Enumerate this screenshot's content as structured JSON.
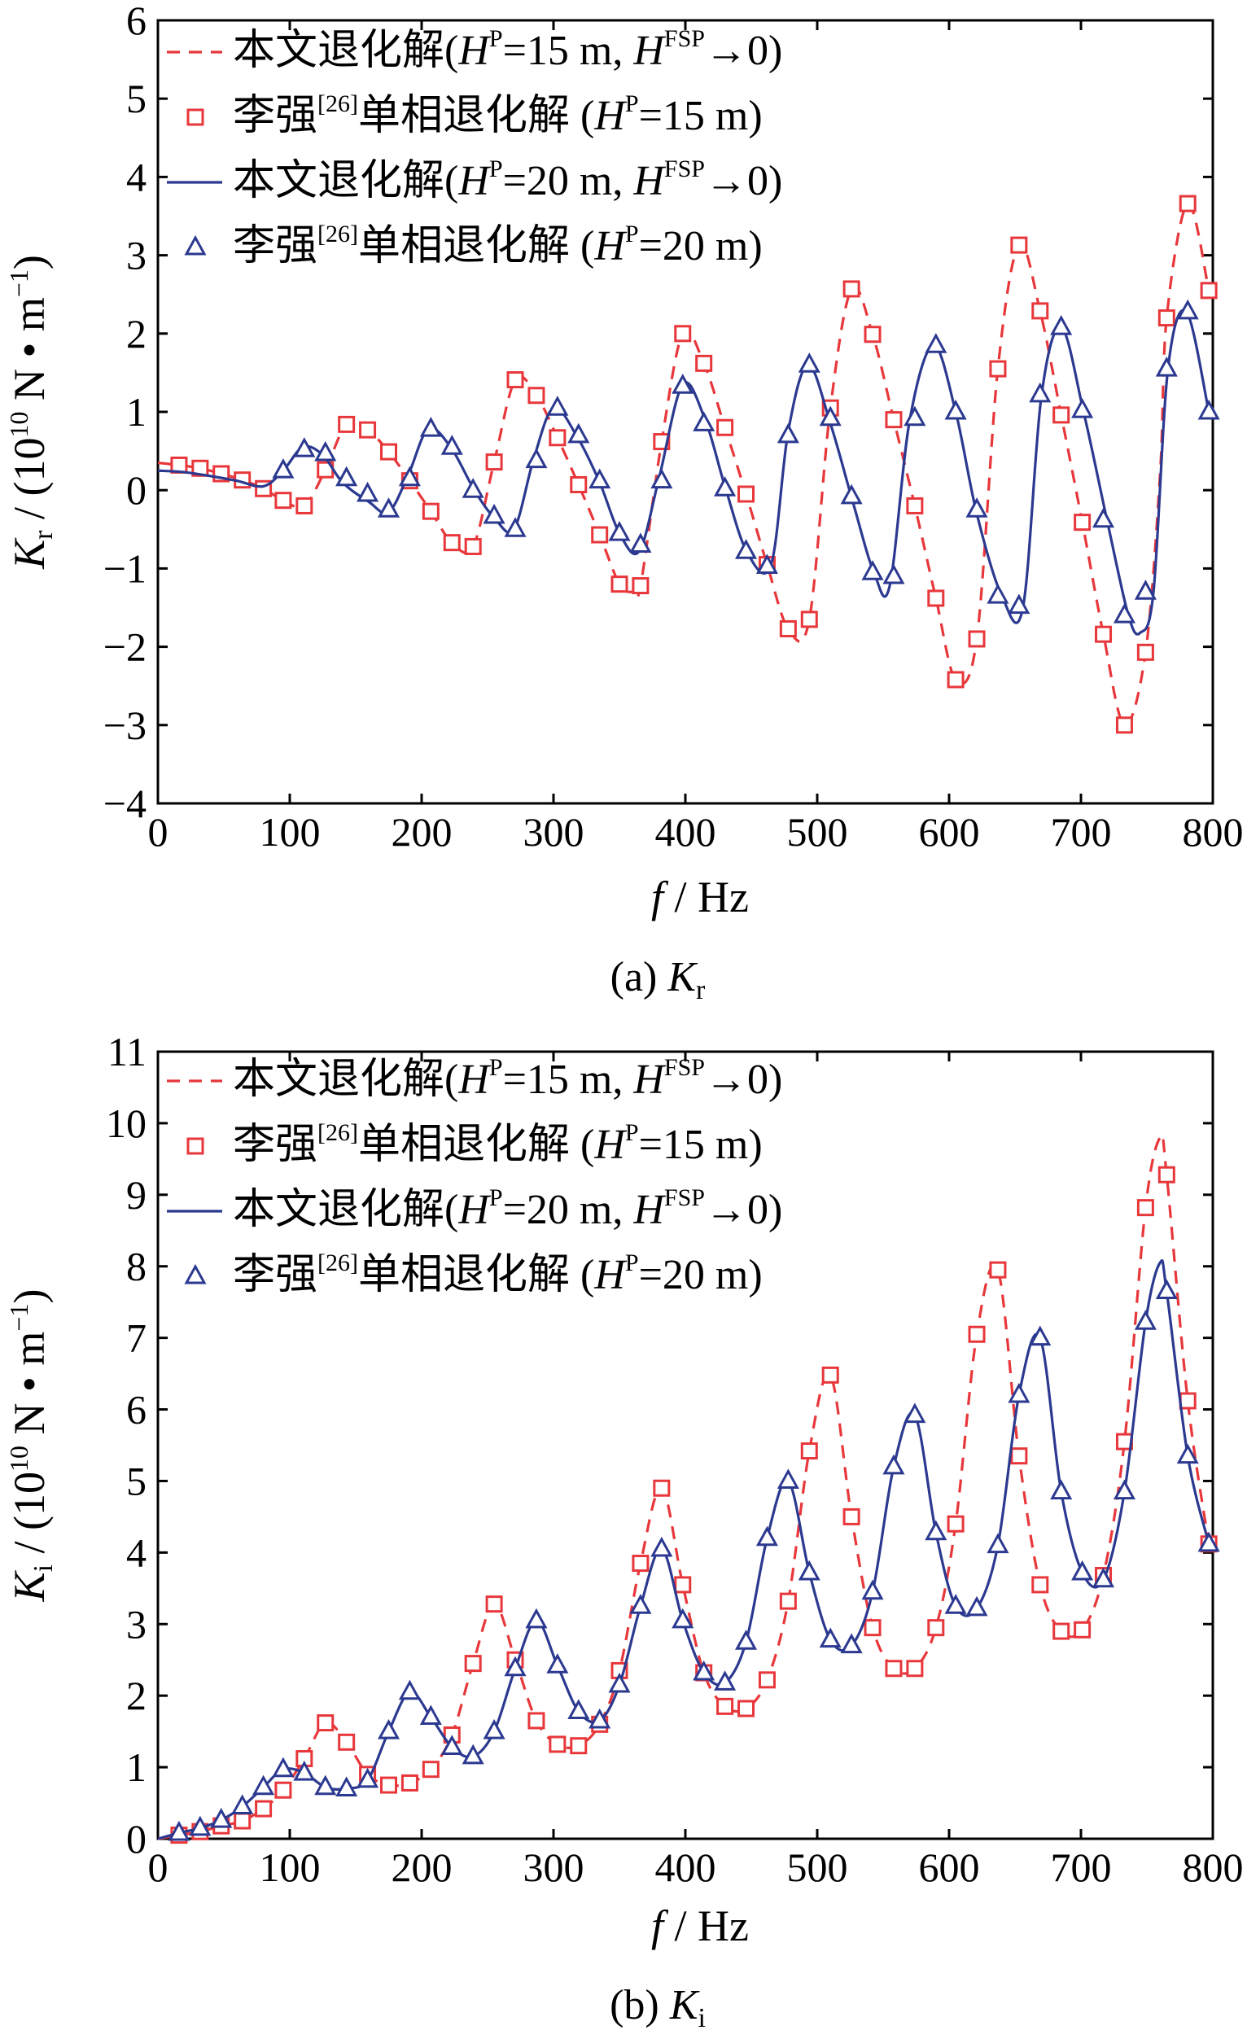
{
  "legend_labels": {
    "l1": {
      "a": "本文退化解(",
      "b": "H",
      "c": "P",
      "d": "=15 m, ",
      "e": "H",
      "f": "FSP",
      "g": "→0)"
    },
    "l2": {
      "a": "李强",
      "b": "[26]",
      "c": "单相退化解 (",
      "d": "H",
      "e": "P",
      "f": "=15 m)"
    },
    "l3": {
      "a": "本文退化解(",
      "b": "H",
      "c": "P",
      "d": "=20 m, ",
      "e": "H",
      "f": "FSP",
      "g": "→0)"
    },
    "l4": {
      "a": "李强",
      "b": "[26]",
      "c": "单相退化解 (",
      "d": "H",
      "e": "P",
      "f": "=20 m)"
    }
  },
  "colors": {
    "red": "#e8373b",
    "blue": "#2b3990"
  },
  "chart_data": [
    {
      "type": "line",
      "caption": {
        "prefix": "(a)  ",
        "sym": "K",
        "sub": "r"
      },
      "xlabel": {
        "sym": "f",
        "rest": " / Hz"
      },
      "ylabel": {
        "sym": "K",
        "sub": "r",
        "a": " / (10",
        "exp": "10",
        "b": " N • m",
        "exp2": "−1",
        "c": ")"
      },
      "xlim": [
        0,
        800
      ],
      "ylim": [
        -4,
        6
      ],
      "xticks": [
        0,
        100,
        200,
        300,
        400,
        500,
        600,
        700,
        800
      ],
      "yticks": [
        -4,
        -3,
        -2,
        -1,
        0,
        1,
        2,
        3,
        4,
        5,
        6
      ],
      "ytick_labels": [
        "−4",
        "−3",
        "−2",
        "−1",
        "0",
        "1",
        "2",
        "3",
        "4",
        "5",
        "6"
      ],
      "grid": false,
      "legend_position": "top-left",
      "series": [
        {
          "style": "dashed-red",
          "x": [
            0,
            16,
            32,
            48,
            64,
            80,
            95,
            111,
            127,
            143,
            159,
            175,
            191,
            207,
            223,
            239,
            255,
            271,
            287,
            303,
            319,
            335,
            350,
            360,
            366,
            382,
            398,
            414,
            430,
            446,
            462,
            478,
            494,
            510,
            526,
            542,
            558,
            574,
            590,
            605,
            621,
            637,
            653,
            669,
            685,
            701,
            717,
            733,
            749,
            760,
            765,
            781,
            797
          ],
          "y": [
            0.35,
            0.32,
            0.28,
            0.21,
            0.13,
            0.02,
            -0.13,
            -0.2,
            0.26,
            0.84,
            0.77,
            0.49,
            0.12,
            -0.27,
            -0.67,
            -0.72,
            0.36,
            1.41,
            1.21,
            0.67,
            0.07,
            -0.57,
            -1.2,
            -1.3,
            -1.22,
            0.62,
            2.0,
            1.62,
            0.8,
            -0.05,
            -0.95,
            -1.77,
            -1.65,
            1.05,
            2.57,
            1.99,
            0.9,
            -0.2,
            -1.38,
            -2.42,
            -1.9,
            1.55,
            3.13,
            2.29,
            0.96,
            -0.41,
            -1.84,
            -3.0,
            -2.07,
            0.2,
            2.2,
            3.66,
            2.55
          ]
        },
        {
          "style": "markers-square-red",
          "x": [
            16,
            32,
            48,
            64,
            80,
            95,
            111,
            127,
            143,
            159,
            175,
            191,
            207,
            223,
            239,
            255,
            271,
            287,
            303,
            319,
            335,
            350,
            366,
            382,
            398,
            414,
            430,
            446,
            462,
            478,
            494,
            510,
            526,
            542,
            558,
            574,
            590,
            605,
            621,
            637,
            653,
            669,
            685,
            701,
            717,
            733,
            749,
            765,
            781,
            797
          ],
          "y": [
            0.32,
            0.28,
            0.21,
            0.13,
            0.02,
            -0.13,
            -0.2,
            0.26,
            0.84,
            0.77,
            0.49,
            0.12,
            -0.27,
            -0.67,
            -0.72,
            0.36,
            1.41,
            1.21,
            0.67,
            0.07,
            -0.57,
            -1.2,
            -1.22,
            0.62,
            2.0,
            1.62,
            0.8,
            -0.05,
            -0.95,
            -1.77,
            -1.65,
            1.05,
            2.57,
            1.99,
            0.9,
            -0.2,
            -1.38,
            -2.42,
            -1.9,
            1.55,
            3.13,
            2.29,
            0.96,
            -0.41,
            -1.84,
            -3.0,
            -2.07,
            2.2,
            3.66,
            2.55
          ]
        },
        {
          "style": "solid-blue",
          "x": [
            0,
            20,
            40,
            60,
            80,
            95,
            110,
            125,
            140,
            160,
            175,
            190,
            205,
            222,
            240,
            255,
            270,
            285,
            300,
            318,
            335,
            350,
            365,
            380,
            398,
            415,
            430,
            447,
            465,
            478,
            493,
            510,
            527,
            543,
            555,
            570,
            588,
            605,
            621,
            640,
            656,
            670,
            685,
            702,
            720,
            736,
            745,
            755,
            766,
            780,
            797
          ],
          "y": [
            0.25,
            0.23,
            0.18,
            0.12,
            0.05,
            0.25,
            0.55,
            0.45,
            0.1,
            -0.15,
            -0.28,
            0.2,
            0.78,
            0.55,
            0.0,
            -0.35,
            -0.5,
            0.4,
            1.05,
            0.68,
            0.1,
            -0.55,
            -0.78,
            0.15,
            1.35,
            0.9,
            0.05,
            -0.8,
            -0.95,
            0.75,
            1.6,
            0.85,
            -0.15,
            -1.05,
            -1.22,
            0.88,
            1.85,
            1.0,
            -0.3,
            -1.35,
            -1.5,
            1.2,
            2.08,
            1.0,
            -0.4,
            -1.6,
            -1.82,
            -1.3,
            1.55,
            2.28,
            1.0
          ]
        },
        {
          "style": "markers-triangle-blue",
          "x": [
            95,
            111,
            127,
            143,
            159,
            175,
            191,
            207,
            223,
            239,
            255,
            271,
            287,
            303,
            319,
            335,
            350,
            366,
            382,
            398,
            414,
            430,
            446,
            462,
            478,
            494,
            510,
            526,
            542,
            558,
            574,
            590,
            605,
            621,
            637,
            653,
            669,
            685,
            701,
            717,
            733,
            749,
            765,
            781,
            797
          ],
          "y": [
            0.25,
            0.52,
            0.47,
            0.15,
            -0.05,
            -0.25,
            0.15,
            0.78,
            0.55,
            0.0,
            -0.33,
            -0.5,
            0.38,
            1.05,
            0.7,
            0.12,
            -0.55,
            -0.7,
            0.12,
            1.33,
            0.85,
            0.02,
            -0.78,
            -0.97,
            0.7,
            1.6,
            0.92,
            -0.08,
            -1.05,
            -1.1,
            0.92,
            1.85,
            1.0,
            -0.25,
            -1.35,
            -1.48,
            1.22,
            2.08,
            1.02,
            -0.38,
            -1.6,
            -1.3,
            1.55,
            2.28,
            1.0
          ]
        }
      ]
    },
    {
      "type": "line",
      "caption": {
        "prefix": "(b)  ",
        "sym": "K",
        "sub": "i"
      },
      "xlabel": {
        "sym": "f",
        "rest": " / Hz"
      },
      "ylabel": {
        "sym": "K",
        "sub": "i",
        "a": " / (10",
        "exp": "10",
        "b": " N • m",
        "exp2": "−1",
        "c": ")"
      },
      "xlim": [
        0,
        800
      ],
      "ylim": [
        0,
        11
      ],
      "xticks": [
        0,
        100,
        200,
        300,
        400,
        500,
        600,
        700,
        800
      ],
      "yticks": [
        0,
        1,
        2,
        3,
        4,
        5,
        6,
        7,
        8,
        9,
        10,
        11
      ],
      "ytick_labels": [
        "0",
        "1",
        "2",
        "3",
        "4",
        "5",
        "6",
        "7",
        "8",
        "9",
        "10",
        "11"
      ],
      "grid": false,
      "legend_position": "top-left",
      "series": [
        {
          "style": "dashed-red",
          "x": [
            0,
            16,
            32,
            48,
            64,
            80,
            95,
            111,
            127,
            143,
            159,
            175,
            191,
            207,
            223,
            239,
            255,
            271,
            287,
            303,
            319,
            335,
            350,
            366,
            382,
            398,
            414,
            430,
            446,
            462,
            478,
            494,
            510,
            526,
            542,
            558,
            574,
            590,
            605,
            621,
            637,
            653,
            669,
            685,
            701,
            717,
            733,
            749,
            760,
            765,
            781,
            797
          ],
          "y": [
            0,
            0.05,
            0.1,
            0.18,
            0.25,
            0.42,
            0.68,
            1.12,
            1.62,
            1.35,
            0.9,
            0.75,
            0.78,
            0.97,
            1.45,
            2.45,
            3.28,
            2.5,
            1.65,
            1.32,
            1.3,
            1.6,
            2.35,
            3.85,
            4.9,
            3.55,
            2.32,
            1.85,
            1.82,
            2.22,
            3.32,
            5.42,
            6.48,
            4.5,
            2.95,
            2.38,
            2.38,
            2.95,
            4.4,
            7.05,
            7.95,
            5.35,
            3.55,
            2.9,
            2.92,
            3.68,
            5.55,
            8.82,
            9.8,
            9.28,
            6.12,
            4.12
          ]
        },
        {
          "style": "markers-square-red",
          "x": [
            16,
            32,
            48,
            64,
            80,
            95,
            111,
            127,
            143,
            159,
            175,
            191,
            207,
            223,
            239,
            255,
            271,
            287,
            303,
            319,
            335,
            350,
            366,
            382,
            398,
            414,
            430,
            446,
            462,
            478,
            494,
            510,
            526,
            542,
            558,
            574,
            590,
            605,
            621,
            637,
            653,
            669,
            685,
            701,
            717,
            733,
            749,
            765,
            781,
            797
          ],
          "y": [
            0.05,
            0.1,
            0.18,
            0.25,
            0.42,
            0.68,
            1.12,
            1.62,
            1.35,
            0.9,
            0.75,
            0.78,
            0.97,
            1.45,
            2.45,
            3.28,
            2.5,
            1.65,
            1.32,
            1.3,
            1.6,
            2.35,
            3.85,
            4.9,
            3.55,
            2.32,
            1.85,
            1.82,
            2.22,
            3.32,
            5.42,
            6.48,
            4.5,
            2.95,
            2.38,
            2.38,
            2.95,
            4.4,
            7.05,
            7.95,
            5.35,
            3.55,
            2.9,
            2.92,
            3.68,
            5.55,
            8.82,
            9.28,
            6.12,
            4.12
          ]
        },
        {
          "style": "solid-blue",
          "x": [
            0,
            16,
            32,
            48,
            64,
            80,
            95,
            111,
            127,
            143,
            159,
            175,
            191,
            207,
            223,
            239,
            255,
            271,
            287,
            303,
            319,
            335,
            350,
            366,
            382,
            398,
            414,
            430,
            446,
            462,
            478,
            494,
            510,
            526,
            542,
            558,
            574,
            590,
            605,
            621,
            637,
            653,
            669,
            685,
            701,
            717,
            733,
            749,
            760,
            765,
            781,
            797
          ],
          "y": [
            0,
            0.08,
            0.15,
            0.26,
            0.45,
            0.72,
            0.97,
            0.92,
            0.72,
            0.7,
            0.82,
            1.5,
            2.05,
            1.7,
            1.28,
            1.15,
            1.5,
            2.38,
            3.05,
            2.42,
            1.78,
            1.65,
            2.15,
            3.25,
            4.05,
            3.05,
            2.32,
            2.18,
            2.75,
            4.2,
            5.0,
            3.72,
            2.78,
            2.7,
            3.45,
            5.2,
            5.92,
            4.28,
            3.25,
            3.22,
            4.1,
            6.2,
            7.0,
            4.85,
            3.72,
            3.62,
            4.85,
            7.22,
            8.05,
            7.65,
            5.35,
            4.12
          ]
        },
        {
          "style": "markers-triangle-blue",
          "x": [
            16,
            32,
            48,
            64,
            80,
            95,
            111,
            127,
            143,
            159,
            175,
            191,
            207,
            223,
            239,
            255,
            271,
            287,
            303,
            319,
            335,
            350,
            366,
            382,
            398,
            414,
            430,
            446,
            462,
            478,
            494,
            510,
            526,
            542,
            558,
            574,
            590,
            605,
            621,
            637,
            653,
            669,
            685,
            701,
            717,
            733,
            749,
            765,
            781,
            797
          ],
          "y": [
            0.08,
            0.15,
            0.26,
            0.45,
            0.72,
            0.97,
            0.92,
            0.72,
            0.7,
            0.82,
            1.5,
            2.05,
            1.7,
            1.28,
            1.15,
            1.5,
            2.38,
            3.05,
            2.42,
            1.78,
            1.65,
            2.15,
            3.25,
            4.05,
            3.05,
            2.32,
            2.18,
            2.75,
            4.2,
            5.0,
            3.72,
            2.78,
            2.7,
            3.45,
            5.2,
            5.92,
            4.28,
            3.25,
            3.22,
            4.1,
            6.2,
            7.0,
            4.85,
            3.72,
            3.62,
            4.85,
            7.22,
            7.65,
            5.35,
            4.12
          ]
        }
      ]
    }
  ]
}
